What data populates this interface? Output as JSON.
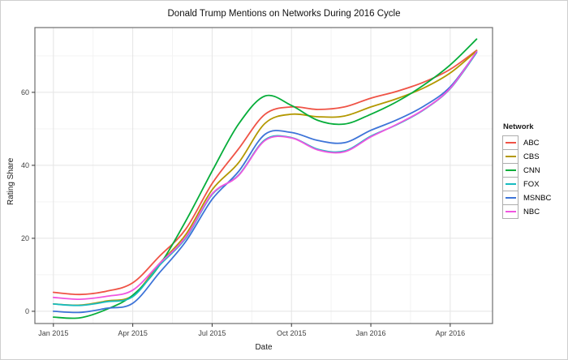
{
  "chart_data": {
    "type": "line",
    "title": "Donald Trump Mentions on Networks During 2016 Cycle",
    "xlabel": "Date",
    "ylabel": "Rating Share",
    "legend_title": "Network",
    "legend_position": "right",
    "grid": "major and minor, light gray on white panel",
    "x": [
      "2015-01",
      "2015-02",
      "2015-03",
      "2015-04",
      "2015-05",
      "2015-06",
      "2015-07",
      "2015-08",
      "2015-09",
      "2015-10",
      "2015-11",
      "2015-12",
      "2016-01",
      "2016-02",
      "2016-03",
      "2016-04",
      "2016-05"
    ],
    "series": [
      {
        "name": "ABC",
        "color": "#ef5346",
        "values": [
          5.2,
          4.6,
          5.5,
          7.8,
          15.0,
          22.5,
          35.0,
          44.5,
          54.0,
          56.0,
          55.3,
          56.0,
          58.4,
          60.3,
          62.8,
          66.3,
          71.5
        ]
      },
      {
        "name": "CBS",
        "color": "#b39800",
        "values": [
          2.0,
          1.7,
          2.8,
          4.3,
          13.0,
          21.0,
          33.3,
          40.7,
          51.5,
          54.0,
          53.3,
          53.5,
          56.0,
          58.3,
          61.2,
          65.3,
          71.4
        ]
      },
      {
        "name": "CNN",
        "color": "#06ad3a",
        "values": [
          -1.6,
          -1.8,
          0.5,
          4.4,
          12.5,
          24.7,
          38.4,
          51.3,
          59.0,
          56.4,
          52.3,
          51.3,
          54.0,
          57.5,
          62.0,
          67.5,
          74.6
        ]
      },
      {
        "name": "FOX",
        "color": "#17bcc1",
        "values": [
          2.0,
          1.6,
          2.6,
          4.0,
          12.5,
          20.0,
          32.0,
          37.3,
          47.0,
          47.6,
          44.4,
          43.9,
          48.0,
          51.2,
          55.2,
          61.0,
          70.9
        ]
      },
      {
        "name": "MSNBC",
        "color": "#3d74d8",
        "values": [
          0.0,
          -0.3,
          0.8,
          2.2,
          10.5,
          19.1,
          30.7,
          38.3,
          48.5,
          49.0,
          46.8,
          46.2,
          49.6,
          52.5,
          56.2,
          61.5,
          71.1
        ]
      },
      {
        "name": "NBC",
        "color": "#f055e0",
        "values": [
          3.8,
          3.3,
          4.1,
          5.8,
          13.0,
          20.3,
          32.2,
          37.2,
          46.8,
          47.5,
          44.2,
          43.7,
          47.8,
          51.3,
          55.3,
          61.1,
          71.2
        ]
      }
    ],
    "x_ticks": {
      "positions": [
        0,
        3,
        6,
        9,
        12,
        15
      ],
      "labels": [
        "Jan 2015",
        "Apr 2015",
        "Jul 2015",
        "Oct 2015",
        "Jan 2016",
        "Apr 2016"
      ]
    },
    "x_minor_ticks": [
      1.5,
      4.5,
      7.5,
      10.5,
      13.5
    ],
    "y_ticks": [
      0,
      20,
      40,
      60
    ],
    "y_minor_ticks": [
      10,
      30,
      50,
      70
    ],
    "xlim_months": [
      -0.7,
      16.6
    ],
    "ylim": [
      -3.35,
      77.75
    ]
  }
}
